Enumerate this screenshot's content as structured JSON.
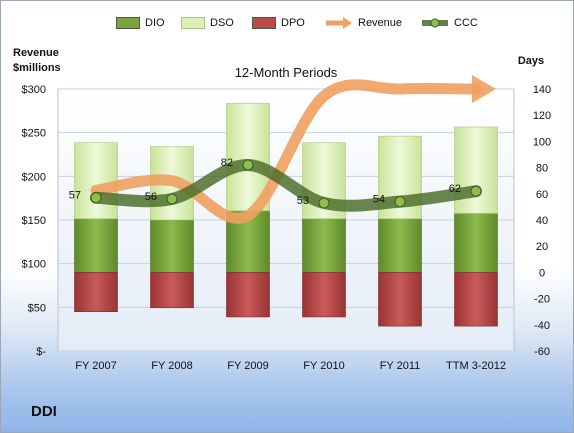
{
  "company": "DDI",
  "chart_data": {
    "type": "bar",
    "title": "12-Month Periods",
    "ylabel_left": "Revenue $millions",
    "ylabel_right": "Days",
    "categories": [
      "FY 2007",
      "FY 2008",
      "FY 2009",
      "FY 2010",
      "FY 2011",
      "TTM 3-2012"
    ],
    "left_axis": {
      "ticks": [
        "$-",
        "$50",
        "$100",
        "$150",
        "$200",
        "$250",
        "$300"
      ],
      "ylim": [
        0,
        300
      ]
    },
    "right_axis": {
      "ticks": [
        "-60",
        "-40",
        "-20",
        "0",
        "20",
        "40",
        "60",
        "80",
        "100",
        "120",
        "140"
      ],
      "ylim": [
        -60,
        140
      ]
    },
    "legend_position": "top",
    "series": [
      {
        "name": "DIO",
        "type": "stacked-bar",
        "axis": "right",
        "color": "#7aa23f",
        "values": [
          41,
          40,
          47,
          41,
          41,
          45
        ]
      },
      {
        "name": "DSO",
        "type": "stacked-bar",
        "axis": "right",
        "color": "#dcefb8",
        "values": [
          58,
          56,
          82,
          58,
          63,
          66
        ]
      },
      {
        "name": "DPO",
        "type": "negative-bar",
        "axis": "right",
        "color": "#b84a4a",
        "values": [
          -30,
          -27,
          -34,
          -34,
          -41,
          -41
        ]
      },
      {
        "name": "Revenue",
        "type": "line",
        "axis": "left",
        "color": "#f0a060",
        "values": [
          184,
          195,
          155,
          292,
          300,
          300
        ]
      },
      {
        "name": "CCC",
        "type": "line",
        "axis": "right",
        "color": "#4a6b28",
        "values": [
          57,
          56,
          82,
          53,
          54,
          62
        ]
      }
    ],
    "ccc_labels": [
      "57",
      "56",
      "82",
      "53",
      "54",
      "62"
    ],
    "grid": true
  }
}
